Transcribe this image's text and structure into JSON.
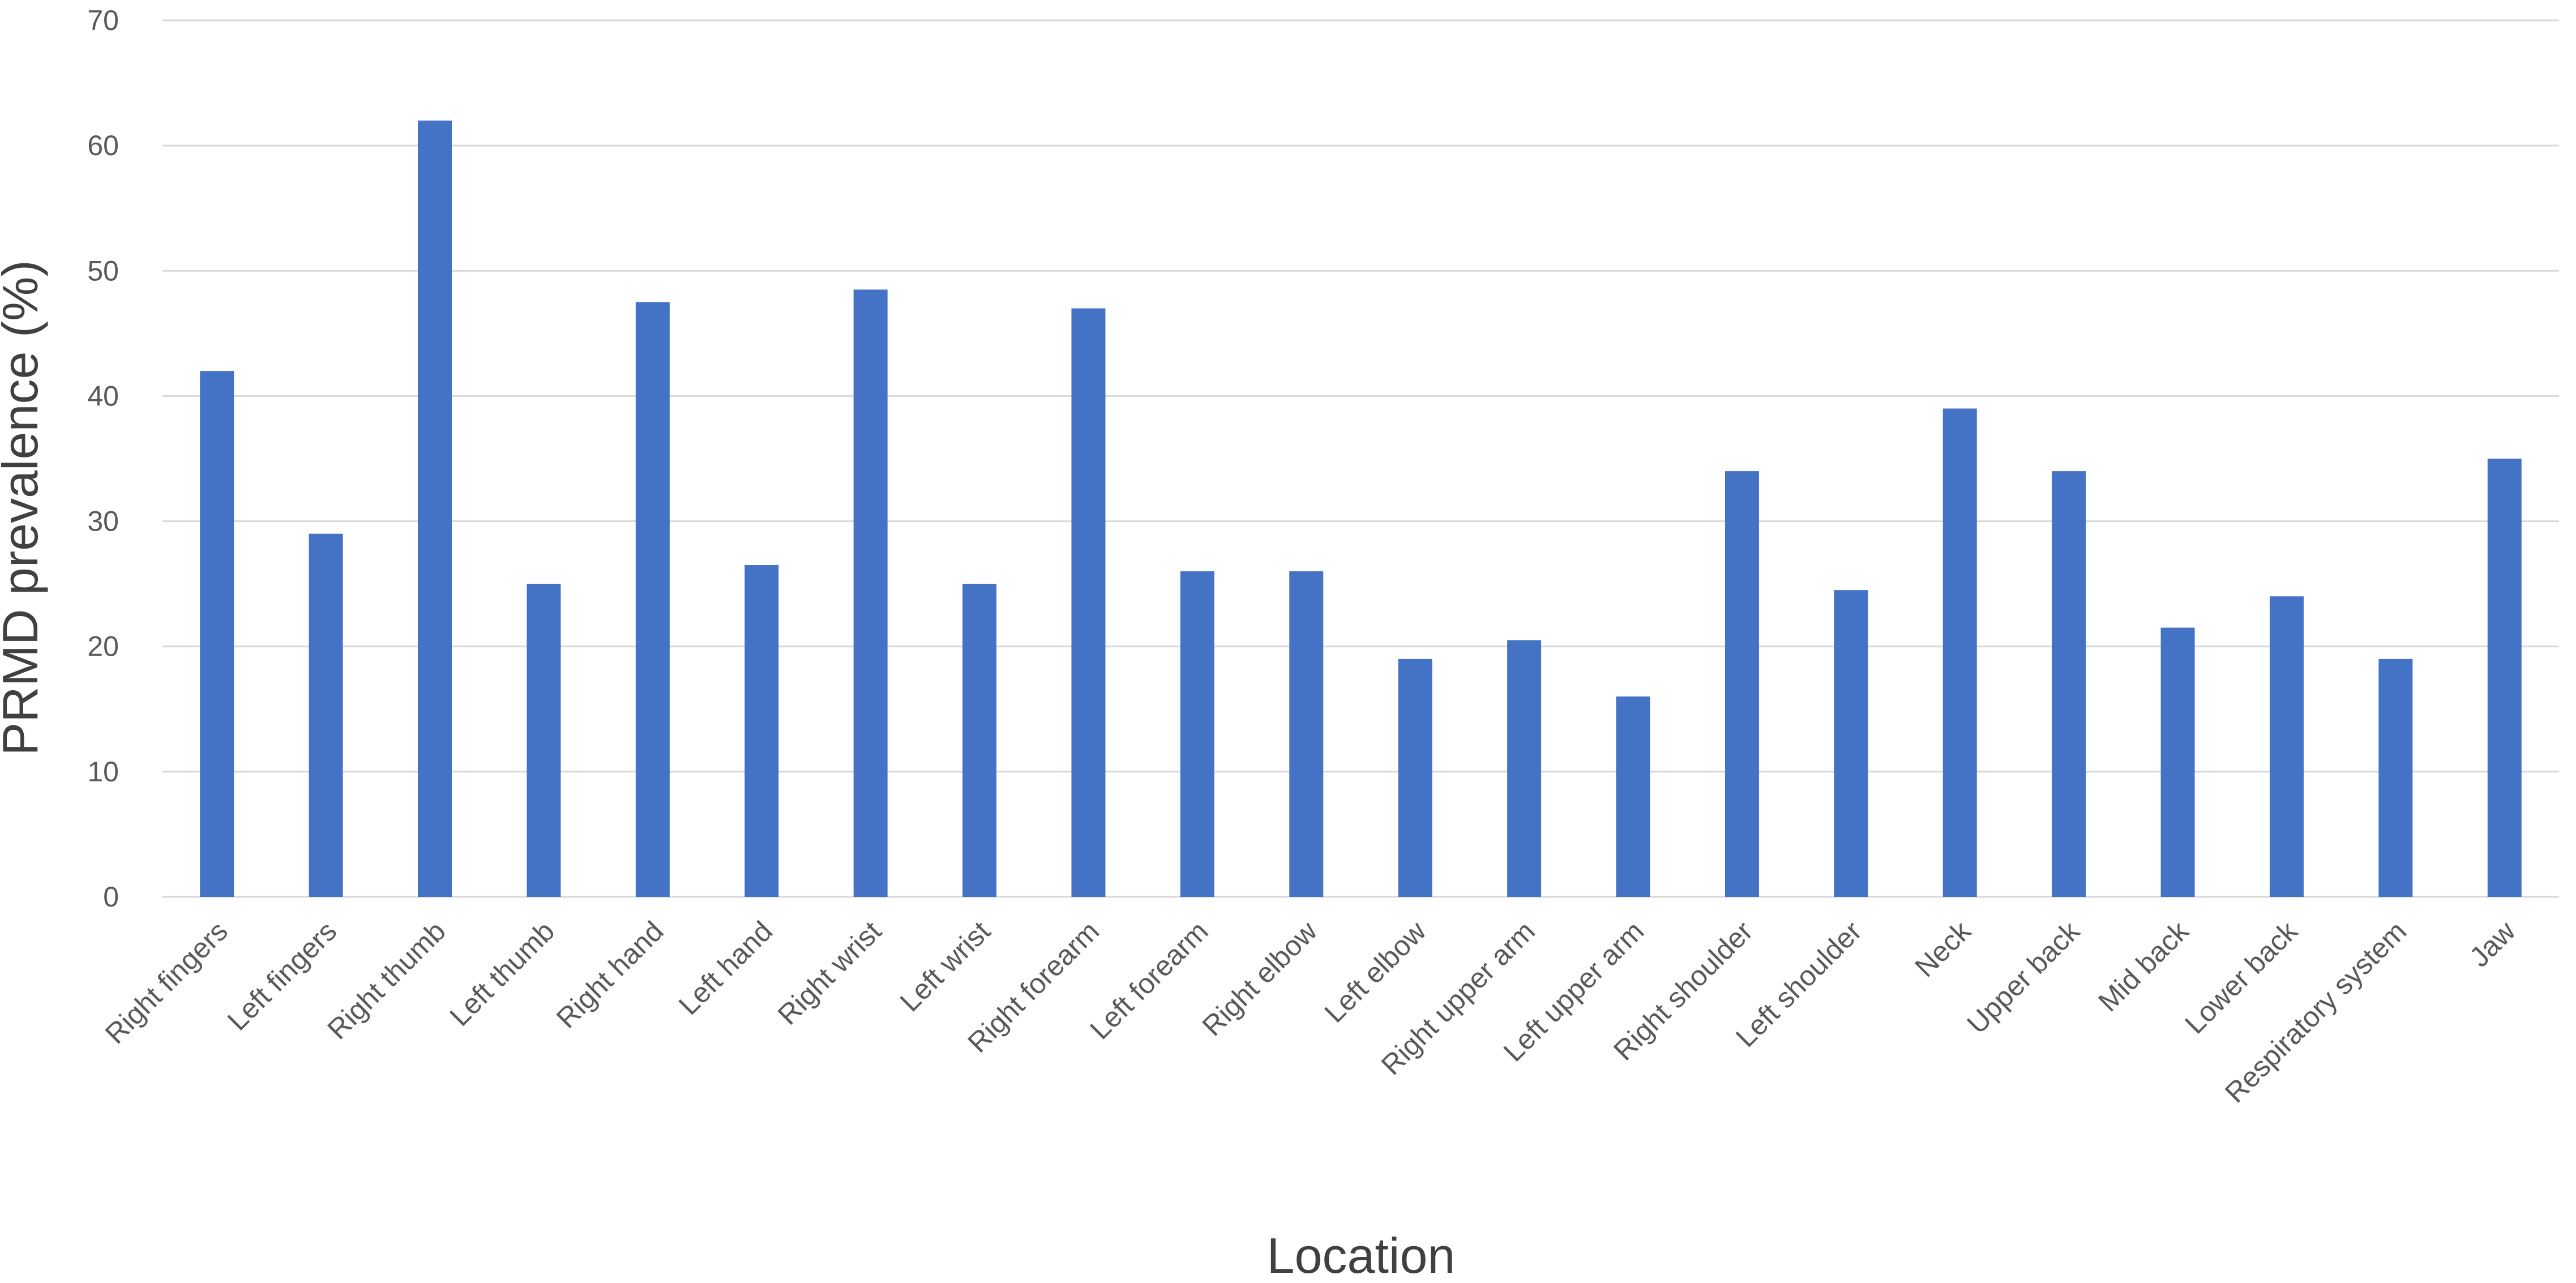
{
  "chart_data": {
    "type": "bar",
    "title": "",
    "xlabel": "Location",
    "ylabel": "PRMD prevalence (%)",
    "ylim": [
      0,
      70
    ],
    "yticks": [
      0,
      10,
      20,
      30,
      40,
      50,
      60,
      70
    ],
    "grid": true,
    "legend": "none",
    "categories": [
      "Right fingers",
      "Left fingers",
      "Right thumb",
      "Left thumb",
      "Right hand",
      "Left hand",
      "Right wrist",
      "Left wrist",
      "Right forearm",
      "Left forearm",
      "Right elbow",
      "Left elbow",
      "Right upper arm",
      "Left upper arm",
      "Right shoulder",
      "Left shoulder",
      "Neck",
      "Upper back",
      "Mid back",
      "Lower back",
      "Respiratory system",
      "Jaw"
    ],
    "values": [
      42,
      29,
      62,
      25,
      47.5,
      26.5,
      48.5,
      25,
      47,
      26,
      26,
      19,
      20.5,
      16,
      34,
      24.5,
      39,
      34,
      21.5,
      24,
      19,
      35
    ],
    "colors": {
      "bar": "#4472c4"
    }
  }
}
